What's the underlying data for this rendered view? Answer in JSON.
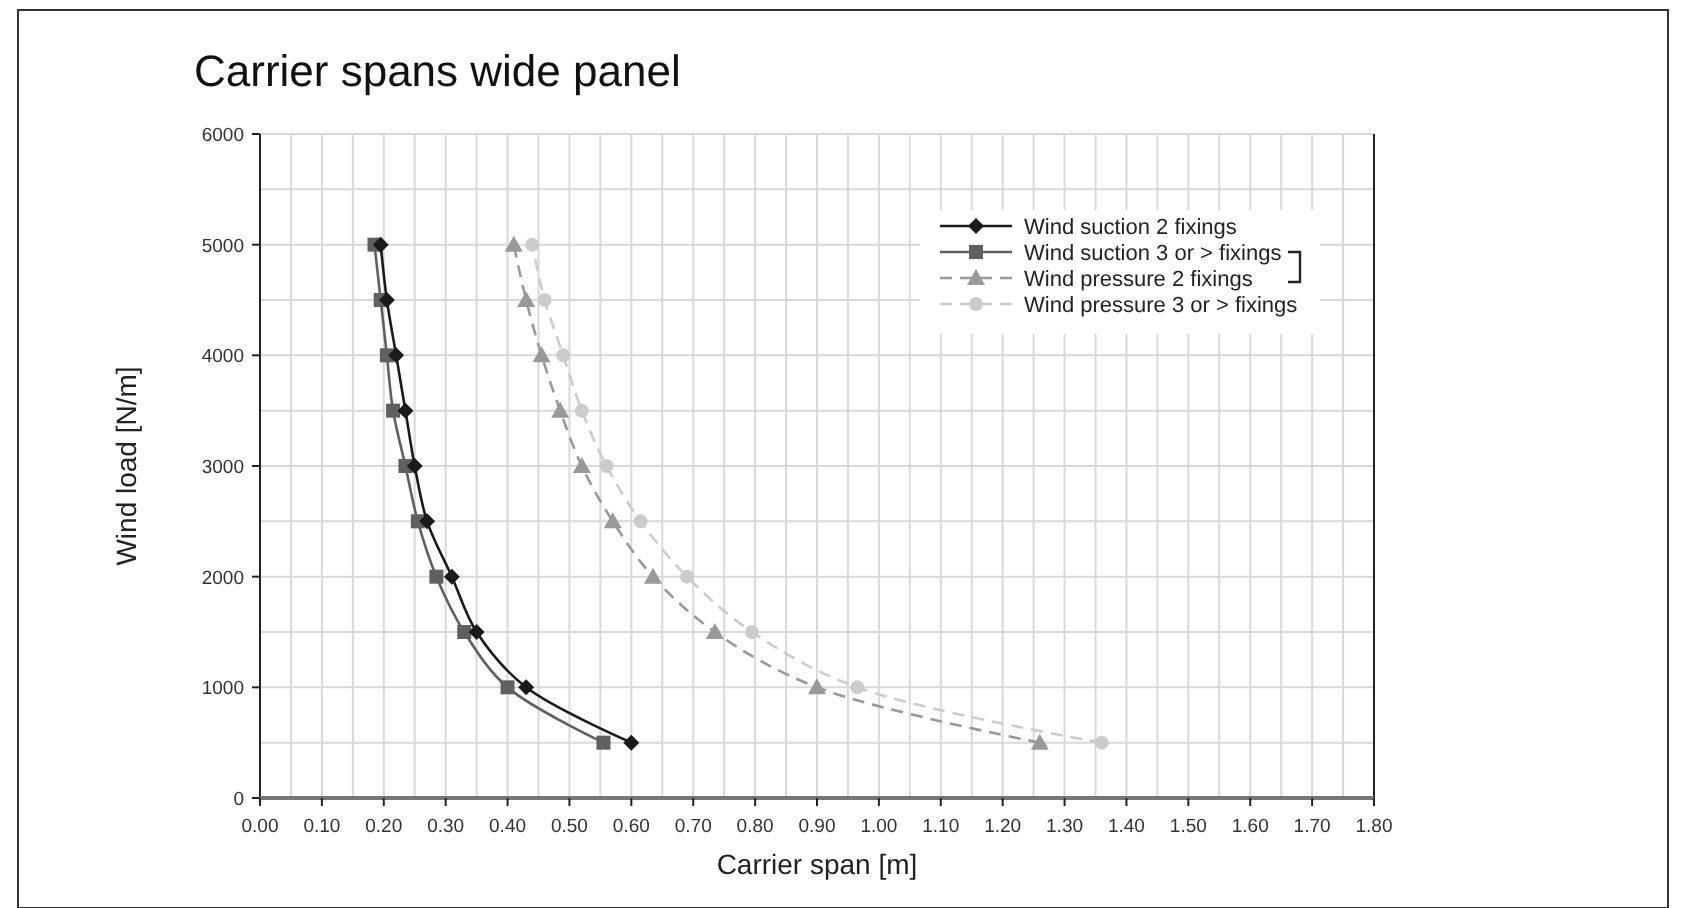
{
  "chart_data": {
    "type": "line",
    "title": "Carrier spans wide panel",
    "xlabel": "Carrier span [m]",
    "ylabel": "Wind load [N/m]",
    "orientation": "horizontal",
    "x": [
      500,
      1000,
      1500,
      2000,
      2500,
      3000,
      3500,
      4000,
      4500,
      5000
    ],
    "series": [
      {
        "name": "Wind suction 2 fixings",
        "color": "#1a1a1a",
        "marker": "diamond",
        "line_style": "solid",
        "values": [
          0.6,
          0.43,
          0.35,
          0.31,
          0.27,
          0.25,
          0.235,
          0.22,
          0.205,
          0.195
        ]
      },
      {
        "name": "Wind suction 3 or > fixings",
        "color": "#606060",
        "marker": "square",
        "line_style": "solid",
        "values": [
          0.555,
          0.4,
          0.33,
          0.285,
          0.255,
          0.235,
          0.215,
          0.205,
          0.195,
          0.185
        ]
      },
      {
        "name": "Wind pressure 2 fixings",
        "color": "#999999",
        "marker": "triangle",
        "line_style": "dashed",
        "values": [
          1.26,
          0.9,
          0.735,
          0.635,
          0.57,
          0.52,
          0.485,
          0.455,
          0.43,
          0.41
        ]
      },
      {
        "name": "Wind pressure 3 or > fixings",
        "color": "#cccccc",
        "marker": "circle",
        "line_style": "dashed",
        "values": [
          1.36,
          0.965,
          0.795,
          0.69,
          0.615,
          0.56,
          0.52,
          0.49,
          0.46,
          0.44
        ]
      }
    ],
    "xlim": [
      0,
      1.8
    ],
    "xticks": [
      {
        "value": 0,
        "label": "0.00"
      },
      {
        "value": 0.1,
        "label": "0.10"
      },
      {
        "value": 0.2,
        "label": "0.20"
      },
      {
        "value": 0.3,
        "label": "0.30"
      },
      {
        "value": 0.4,
        "label": "0.40"
      },
      {
        "value": 0.5,
        "label": "0.50"
      },
      {
        "value": 0.6,
        "label": "0.60"
      },
      {
        "value": 0.7,
        "label": "0.70"
      },
      {
        "value": 0.8,
        "label": "0.80"
      },
      {
        "value": 0.9,
        "label": "0.90"
      },
      {
        "value": 1,
        "label": "1.00"
      },
      {
        "value": 1.1,
        "label": "1.10"
      },
      {
        "value": 1.2,
        "label": "1.20"
      },
      {
        "value": 1.3,
        "label": "1.30"
      },
      {
        "value": 1.4,
        "label": "1.40"
      },
      {
        "value": 1.5,
        "label": "1.50"
      },
      {
        "value": 1.6,
        "label": "1.60"
      },
      {
        "value": 1.7,
        "label": "1.70"
      },
      {
        "value": 1.8,
        "label": "1.80"
      }
    ],
    "ylim": [
      0,
      6000
    ],
    "yticks": [
      0,
      1000,
      2000,
      3000,
      4000,
      5000,
      6000
    ],
    "grid": true,
    "legend": "top right"
  }
}
